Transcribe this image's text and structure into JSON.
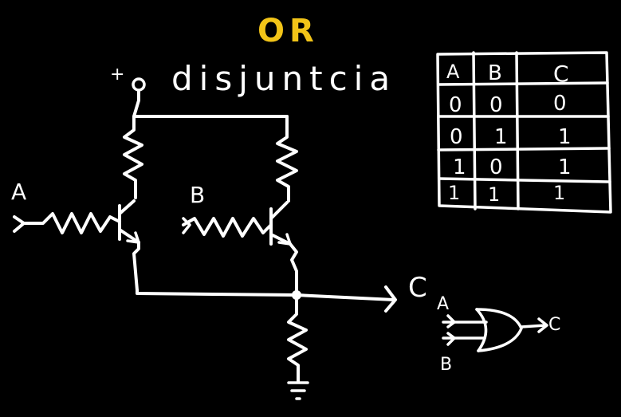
{
  "title": "OR",
  "subtitle": "disjuntcia",
  "colors": {
    "background": "#000000",
    "ink": "#ffffff",
    "title": "#f2c418"
  },
  "circuit": {
    "supply_label": "+",
    "input_a_label": "A",
    "input_b_label": "B",
    "output_label": "C",
    "ground_label": "⏚"
  },
  "truth_table": {
    "headers": [
      "A",
      "B",
      "C"
    ],
    "rows": [
      [
        "0",
        "0",
        "0"
      ],
      [
        "0",
        "1",
        "1"
      ],
      [
        "1",
        "0",
        "1"
      ],
      [
        "1",
        "1",
        "1"
      ]
    ]
  },
  "gate_symbol": {
    "input_a_label": "A",
    "input_b_label": "B",
    "output_label": "C"
  }
}
